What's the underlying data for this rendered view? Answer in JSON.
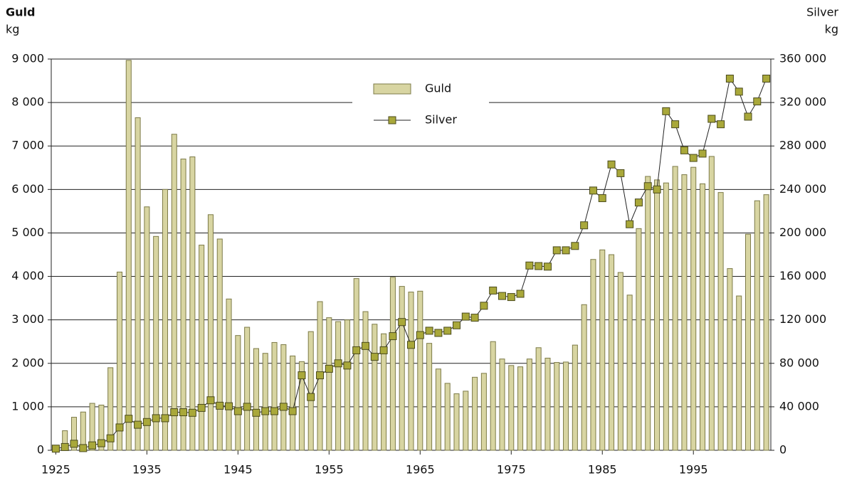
{
  "chart_data": {
    "type": "bar_line",
    "y_label_title": "Guld",
    "y_label_unit": "kg",
    "y2_label_title": "Silver",
    "y2_label_unit": "kg",
    "x": [
      1925,
      1926,
      1927,
      1928,
      1929,
      1930,
      1931,
      1932,
      1933,
      1934,
      1935,
      1936,
      1937,
      1938,
      1939,
      1940,
      1941,
      1942,
      1943,
      1944,
      1945,
      1946,
      1947,
      1948,
      1949,
      1950,
      1951,
      1952,
      1953,
      1954,
      1955,
      1956,
      1957,
      1958,
      1959,
      1960,
      1961,
      1962,
      1963,
      1964,
      1965,
      1966,
      1967,
      1968,
      1969,
      1970,
      1971,
      1972,
      1973,
      1974,
      1975,
      1976,
      1977,
      1978,
      1979,
      1980,
      1981,
      1982,
      1983,
      1984,
      1985,
      1986,
      1987,
      1988,
      1989,
      1990,
      1991,
      1992,
      1993,
      1994,
      1995,
      1996,
      1997,
      1998,
      1999,
      2000,
      2001,
      2002,
      2003
    ],
    "series": [
      {
        "name": "Guld",
        "kind": "bar",
        "axis": "y",
        "color": "#d8d5a2",
        "edge": "#7d7b48",
        "values": [
          10,
          450,
          760,
          880,
          1080,
          1040,
          1900,
          4100,
          8970,
          7650,
          5600,
          4920,
          6000,
          7270,
          6700,
          6750,
          4720,
          5420,
          4860,
          3480,
          2640,
          2830,
          2340,
          2230,
          2480,
          2430,
          2170,
          2040,
          2730,
          3420,
          3050,
          2960,
          3000,
          3950,
          3190,
          2900,
          2680,
          3980,
          3770,
          3640,
          3660,
          2460,
          1870,
          1540,
          1300,
          1360,
          1680,
          1770,
          2500,
          2100,
          1950,
          1920,
          2100,
          2360,
          2120,
          2020,
          2030,
          2420,
          3350,
          4390,
          4610,
          4500,
          4090,
          3570,
          5100,
          6300,
          6220,
          6150,
          6530,
          6340,
          6510,
          6130,
          6760,
          5930,
          4180,
          3550,
          4970,
          5740,
          5880
        ]
      },
      {
        "name": "Silver",
        "kind": "line",
        "axis": "y2",
        "color": "#a9a83a",
        "edge": "#4a4a1c",
        "values": [
          1500,
          3000,
          6000,
          2000,
          4500,
          6500,
          11000,
          21000,
          29000,
          23500,
          26000,
          29500,
          29500,
          35000,
          35000,
          34500,
          39000,
          46000,
          41000,
          40500,
          36000,
          40000,
          34500,
          36000,
          36000,
          40000,
          36000,
          69000,
          49000,
          69000,
          75000,
          80000,
          78000,
          92000,
          96000,
          86000,
          92000,
          105000,
          118000,
          97000,
          106000,
          110000,
          108000,
          110000,
          115000,
          123000,
          122000,
          133000,
          147000,
          142000,
          141000,
          144000,
          170000,
          169500,
          169000,
          184000,
          184000,
          188000,
          207000,
          239000,
          232000,
          263000,
          255000,
          208000,
          228000,
          243000,
          240000,
          312000,
          300000,
          276000,
          269000,
          273000,
          305000,
          300000,
          342000,
          330000,
          307000,
          321000,
          342000
        ]
      }
    ],
    "xlim": [
      1924.5,
      2003.5
    ],
    "xticks": [
      1925,
      1935,
      1945,
      1955,
      1965,
      1975,
      1985,
      1995
    ],
    "ylim": [
      0,
      9000
    ],
    "yticks": [
      0,
      {
        "value": 1000,
        "label": "1 000"
      },
      {
        "value": 2000,
        "label": "2 000"
      },
      {
        "value": 3000,
        "label": "3 000"
      },
      {
        "value": 4000,
        "label": "4 000"
      },
      {
        "value": 5000,
        "label": "5 000"
      },
      {
        "value": 6000,
        "label": "6 000"
      },
      {
        "value": 7000,
        "label": "7 000"
      },
      {
        "value": 8000,
        "label": "8 000"
      },
      {
        "value": 9000,
        "label": "9 000"
      }
    ],
    "y2lim": [
      0,
      360000
    ],
    "y2ticks": [
      0,
      {
        "value": 40000,
        "label": "40 000"
      },
      {
        "value": 80000,
        "label": "80 000"
      },
      {
        "value": 120000,
        "label": "120 000"
      },
      {
        "value": 160000,
        "label": "160 000"
      },
      {
        "value": 200000,
        "label": "200 000"
      },
      {
        "value": 240000,
        "label": "240 000"
      },
      {
        "value": 280000,
        "label": "280 000"
      },
      {
        "value": 320000,
        "label": "320 000"
      },
      {
        "value": 360000,
        "label": "360 000"
      }
    ],
    "grid": true,
    "legend": "upper center"
  }
}
